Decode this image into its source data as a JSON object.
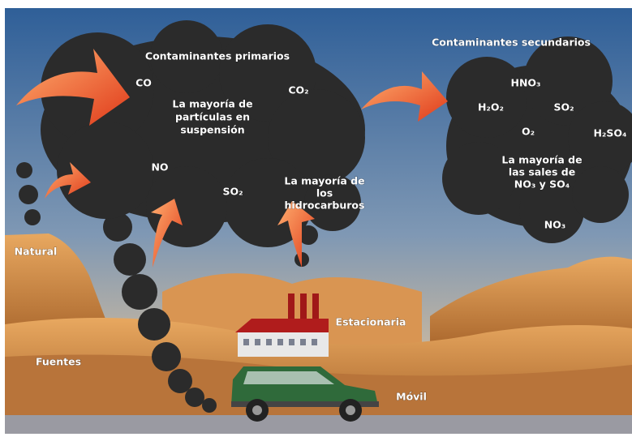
{
  "primary": {
    "title": "Contaminantes primarios",
    "items": [
      "CO",
      "CO₂",
      "NO",
      "SO₂"
    ],
    "notes": [
      [
        "La mayoría de",
        "partículas en",
        "suspensión"
      ],
      [
        "La mayoría de",
        "los",
        "hidrocarburos"
      ]
    ]
  },
  "secondary": {
    "title": "Contaminantes secundarios",
    "items": [
      "HNO₃",
      "H₂O₂",
      "SO₂",
      "O₂",
      "H₂SO₄",
      "NO₃"
    ],
    "notes": [
      [
        "La mayoría de",
        "las sales de",
        "NO₃ y SO₄"
      ]
    ]
  },
  "sources": {
    "title": "Fuentes",
    "items": [
      "Natural",
      "Estacionaria",
      "Móvil"
    ]
  }
}
